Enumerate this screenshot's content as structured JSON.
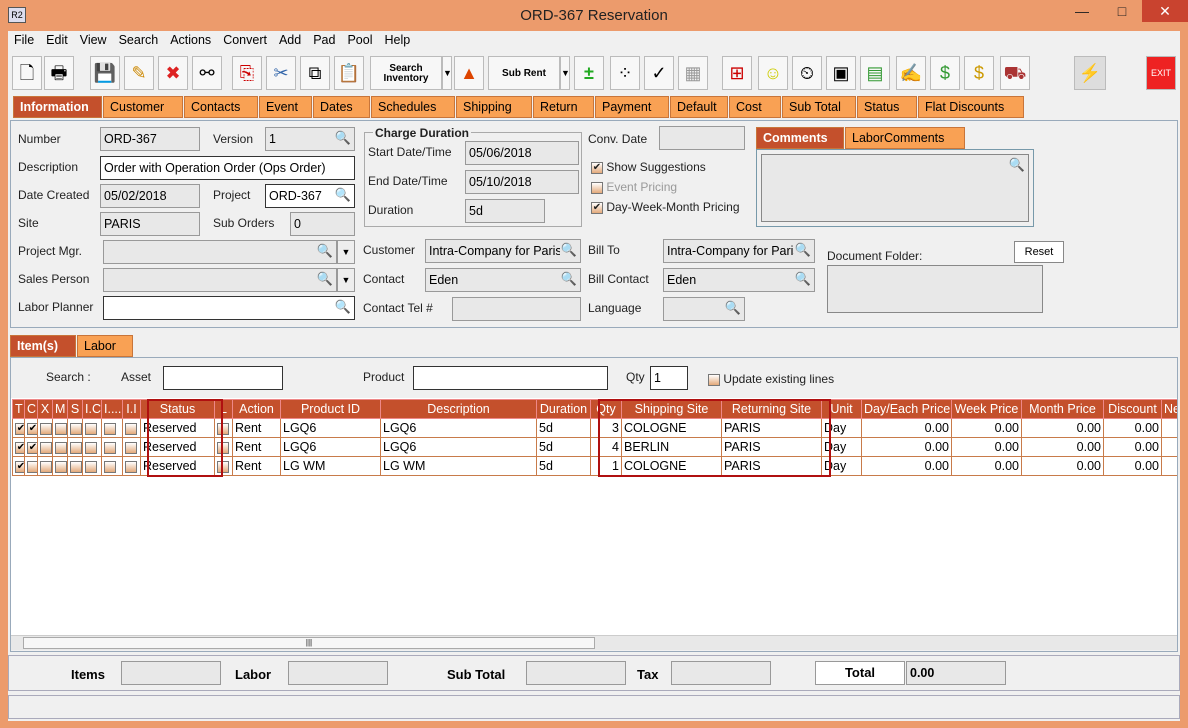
{
  "window": {
    "title": "ORD-367 Reservation",
    "app_icon": "R2",
    "minimize": "—",
    "maximize": "□",
    "close": "✕"
  },
  "menu": [
    "File",
    "Edit",
    "View",
    "Search",
    "Actions",
    "Convert",
    "Add",
    "Pad",
    "Pool",
    "Help"
  ],
  "toolbar": {
    "search_inventory": "Search Inventory",
    "sub_rent": "Sub Rent",
    "exit": "EXIT"
  },
  "tabs": [
    "Information",
    "Customer",
    "Contacts",
    "Event",
    "Dates",
    "Schedules",
    "Shipping",
    "Return",
    "Payment",
    "Default",
    "Cost",
    "Sub Total",
    "Status",
    "Flat Discounts"
  ],
  "info": {
    "number_label": "Number",
    "number": "ORD-367",
    "version_label": "Version",
    "version": "1",
    "description_label": "Description",
    "description": "Order with Operation Order (Ops Order)",
    "date_created_label": "Date Created",
    "date_created": "05/02/2018",
    "project_label": "Project",
    "project": "ORD-367",
    "site_label": "Site",
    "site": "PARIS",
    "sub_orders_label": "Sub Orders",
    "sub_orders": "0",
    "project_mgr_label": "Project Mgr.",
    "sales_person_label": "Sales Person",
    "labor_planner_label": "Labor Planner",
    "charge_duration_title": "Charge Duration",
    "start_label": "Start Date/Time",
    "start": "05/06/2018",
    "end_label": "End Date/Time",
    "end": "05/10/2018",
    "duration_label": "Duration",
    "duration": "5d",
    "conv_date_label": "Conv. Date",
    "show_suggestions": "Show Suggestions",
    "event_pricing": "Event Pricing",
    "dwm_pricing": "Day-Week-Month Pricing",
    "customer_label": "Customer",
    "customer": "Intra-Company for Paris Site",
    "contact_label": "Contact",
    "contact": "Eden",
    "contact_tel_label": "Contact Tel #",
    "bill_to_label": "Bill To",
    "bill_to": "Intra-Company for Paris Site",
    "bill_contact_label": "Bill Contact",
    "bill_contact": "Eden",
    "language_label": "Language",
    "comments_tabs": [
      "Comments",
      "LaborComments"
    ],
    "document_folder_label": "Document Folder:",
    "reset": "Reset"
  },
  "items": {
    "tabs": [
      "Item(s)",
      "Labor"
    ],
    "search_label": "Search :",
    "asset_label": "Asset",
    "product_label": "Product",
    "qty_label": "Qty",
    "qty": "1",
    "update_existing": "Update existing lines",
    "columns": [
      "T",
      "C",
      "X",
      "M",
      "S",
      "I.C",
      "I....",
      "I.I",
      "Status",
      "L",
      "Action",
      "Product ID",
      "Description",
      "Duration",
      "Qty",
      "Shipping Site",
      "Returning Site",
      "Unit",
      "Day/Each Price",
      "Week Price",
      "Month Price",
      "Discount",
      "Ne"
    ],
    "rows": [
      {
        "t": true,
        "c": true,
        "status": "Reserved",
        "action": "Rent",
        "product_id": "LGQ6",
        "description": "LGQ6",
        "duration": "5d",
        "qty": "3",
        "ship": "COLOGNE",
        "ret": "PARIS",
        "unit": "Day",
        "day": "0.00",
        "week": "0.00",
        "month": "0.00",
        "discount": "0.00"
      },
      {
        "t": true,
        "c": true,
        "status": "Reserved",
        "action": "Rent",
        "product_id": "LGQ6",
        "description": "LGQ6",
        "duration": "5d",
        "qty": "4",
        "ship": "BERLIN",
        "ret": "PARIS",
        "unit": "Day",
        "day": "0.00",
        "week": "0.00",
        "month": "0.00",
        "discount": "0.00"
      },
      {
        "t": true,
        "c": false,
        "status": "Reserved",
        "action": "Rent",
        "product_id": "LG WM",
        "description": "LG WM",
        "duration": "5d",
        "qty": "1",
        "ship": "COLOGNE",
        "ret": "PARIS",
        "unit": "Day",
        "day": "0.00",
        "week": "0.00",
        "month": "0.00",
        "discount": "0.00"
      }
    ]
  },
  "footer": {
    "items_label": "Items",
    "labor_label": "Labor",
    "subtotal_label": "Sub Total",
    "tax_label": "Tax",
    "total_label": "Total",
    "total": "0.00"
  }
}
